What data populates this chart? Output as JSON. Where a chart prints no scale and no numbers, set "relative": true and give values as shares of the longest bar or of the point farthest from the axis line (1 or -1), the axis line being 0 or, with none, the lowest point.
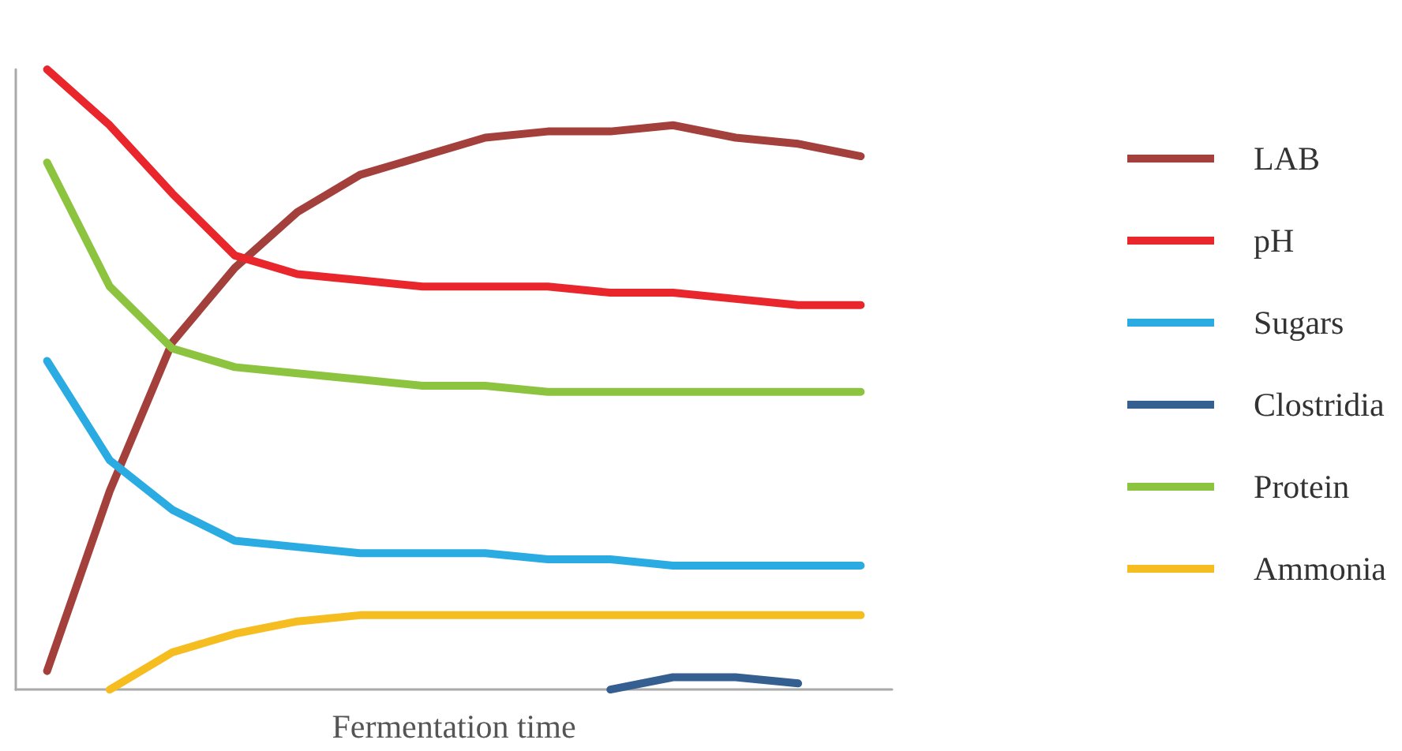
{
  "chart_data": {
    "type": "line",
    "relative": true,
    "xlabel": "Fermentation time",
    "categories": [
      null,
      null,
      null,
      null,
      null,
      null,
      null,
      null,
      null,
      null,
      null,
      null,
      null,
      null
    ],
    "legend": "right",
    "grid": false,
    "marker": "none",
    "line_style": "solid",
    "series": [
      {
        "name": "LAB",
        "color": "#a4403c",
        "values": [
          0.03,
          0.32,
          0.56,
          0.68,
          0.77,
          0.83,
          0.86,
          0.89,
          0.9,
          0.9,
          0.91,
          0.89,
          0.88,
          0.86
        ]
      },
      {
        "name": "pH",
        "color": "#e8262b",
        "values": [
          1.0,
          0.91,
          0.8,
          0.7,
          0.67,
          0.66,
          0.65,
          0.65,
          0.65,
          0.64,
          0.64,
          0.63,
          0.62,
          0.62
        ]
      },
      {
        "name": "Sugars",
        "color": "#2aabe2",
        "values": [
          0.53,
          0.37,
          0.29,
          0.24,
          0.23,
          0.22,
          0.22,
          0.22,
          0.21,
          0.21,
          0.2,
          0.2,
          0.2,
          0.2
        ]
      },
      {
        "name": "Clostridia",
        "color": "#365f91",
        "values": [
          null,
          null,
          null,
          null,
          null,
          null,
          null,
          null,
          null,
          0,
          0.02,
          0.02,
          0.01,
          null
        ]
      },
      {
        "name": "Protein",
        "color": "#8cc43f",
        "values": [
          0.85,
          0.65,
          0.55,
          0.52,
          0.51,
          0.5,
          0.49,
          0.49,
          0.48,
          0.48,
          0.48,
          0.48,
          0.48,
          0.48
        ]
      },
      {
        "name": "Ammonia",
        "color": "#f5bd1f",
        "values": [
          null,
          0,
          0.06,
          0.09,
          0.11,
          0.12,
          0.12,
          0.12,
          0.12,
          0.12,
          0.12,
          0.12,
          0.12,
          0.12
        ]
      }
    ]
  }
}
